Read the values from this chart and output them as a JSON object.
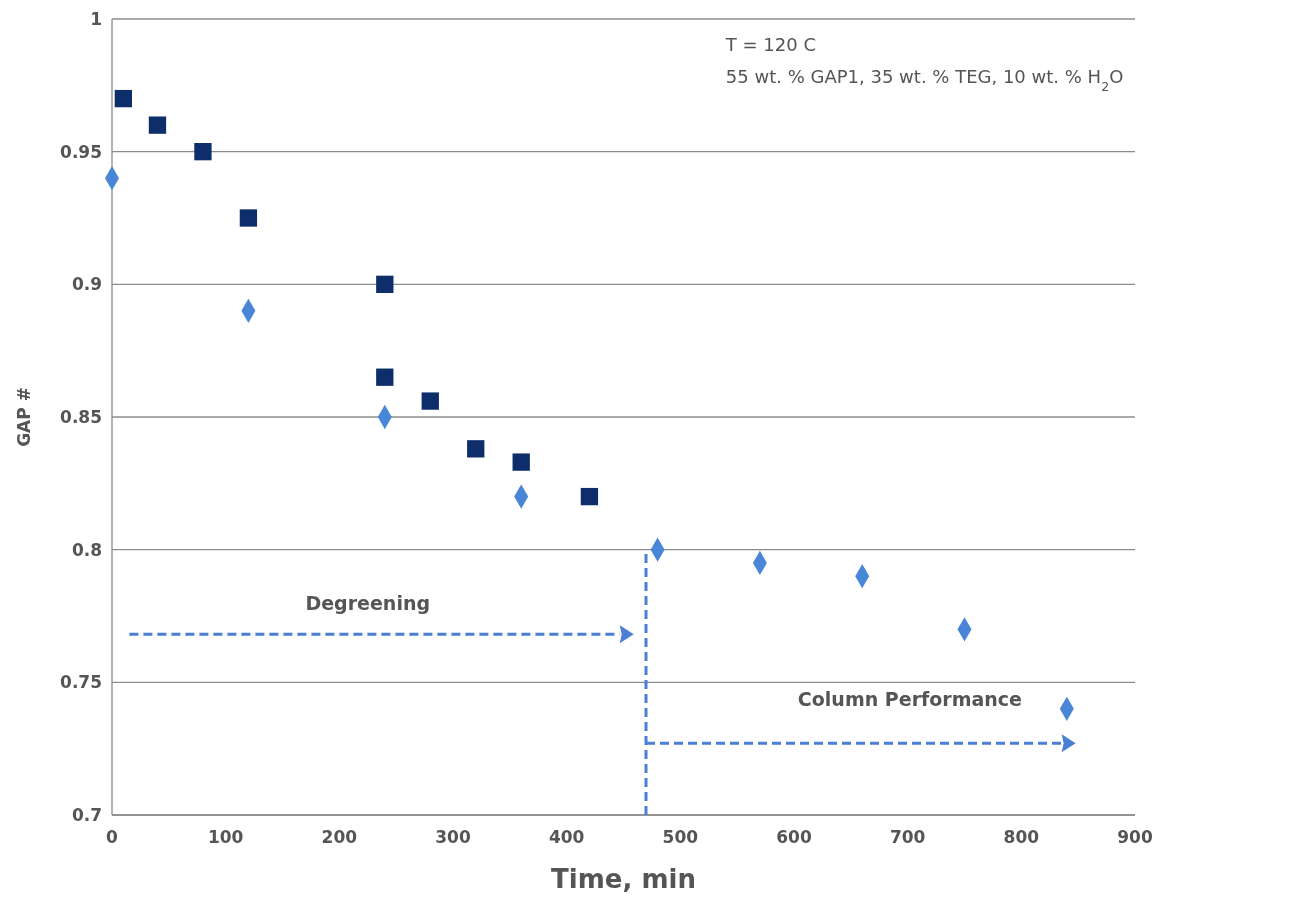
{
  "chart_data": {
    "type": "scatter",
    "xlabel": "Time, min",
    "ylabel": "GAP #",
    "xlim": [
      0,
      900
    ],
    "xticks": [
      0,
      100,
      200,
      300,
      400,
      500,
      600,
      700,
      800,
      900
    ],
    "ylim": [
      0.7,
      1
    ],
    "yticks": [
      0.7,
      0.75,
      0.8,
      0.85,
      0.9,
      0.95,
      1
    ],
    "grid": "y",
    "annotations": [
      "T = 120 C",
      "55 wt. % GAP1, 35 wt. % TEG, 10 wt. % H$_{2}$O",
      "Degreening",
      "Column Performance"
    ],
    "series": [
      {
        "color": "#4a86d8",
        "marker": "diamond",
        "x": [
          0,
          120,
          240,
          360,
          480,
          570,
          660,
          750,
          840
        ],
        "values": [
          0.94,
          0.89,
          0.85,
          0.82,
          0.8,
          0.795,
          0.79,
          0.77,
          0.74
        ]
      },
      {
        "color": "#0d2d6b",
        "marker": "square",
        "x": [
          10,
          40,
          80,
          120,
          240,
          240,
          280,
          320,
          360,
          420
        ],
        "values": [
          0.97,
          0.96,
          0.95,
          0.925,
          0.9,
          0.865,
          0.856,
          0.838,
          0.833,
          0.82
        ]
      }
    ]
  }
}
